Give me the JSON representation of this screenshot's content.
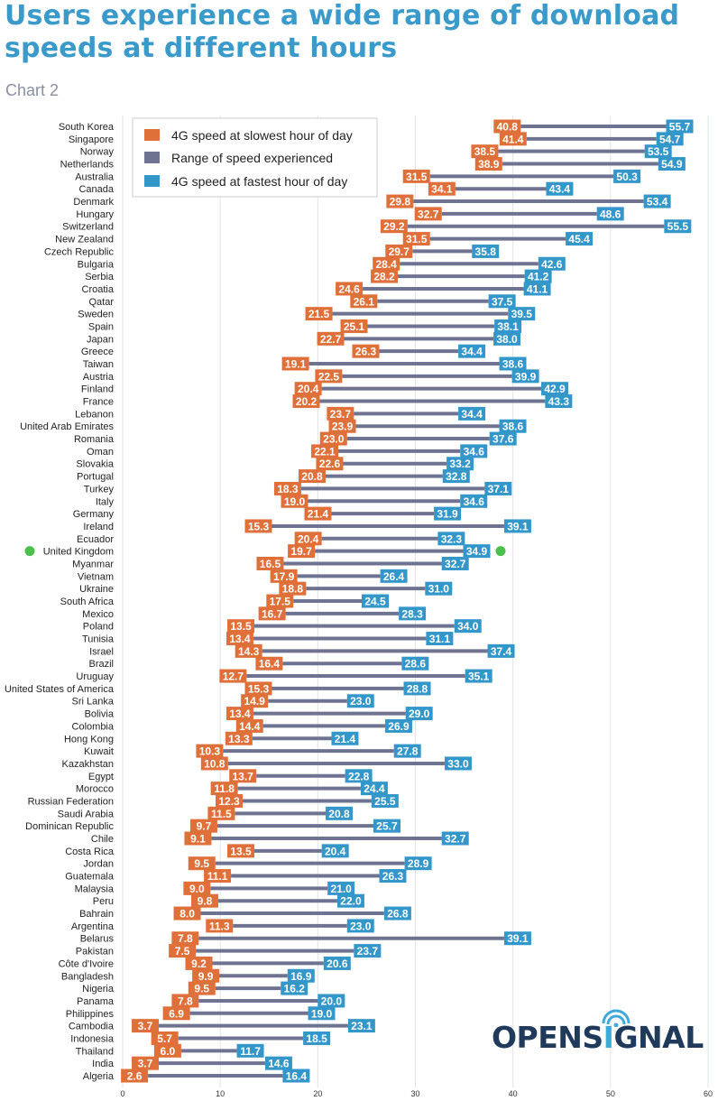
{
  "title": "Users experience a wide range of download speeds at different hours",
  "subtitle": "Chart 2",
  "logo": "OPENSIGNAL",
  "colors": {
    "slowest": "#e0703a",
    "range": "#6e7391",
    "fastest": "#3497c9",
    "highlight": "#4cc04c"
  },
  "chart_data": {
    "type": "dumbbell",
    "xlim": [
      0,
      60
    ],
    "xticks": [
      0,
      10,
      20,
      30,
      40,
      50,
      60
    ],
    "grid": true,
    "legend_placement": "top-left",
    "legend": [
      "4G speed at slowest hour of day",
      "Range of speed experienced",
      "4G speed at fastest hour of day"
    ],
    "highlighted": "United Kingdom",
    "rows": [
      {
        "country": "South Korea",
        "slow": 40.8,
        "fast": 55.7
      },
      {
        "country": "Singapore",
        "slow": 41.4,
        "fast": 54.7
      },
      {
        "country": "Norway",
        "slow": 38.5,
        "fast": 53.5
      },
      {
        "country": "Netherlands",
        "slow": 38.9,
        "fast": 54.9
      },
      {
        "country": "Australia",
        "slow": 31.5,
        "fast": 50.3
      },
      {
        "country": "Canada",
        "slow": 34.1,
        "fast": 43.4
      },
      {
        "country": "Denmark",
        "slow": 29.8,
        "fast": 53.4
      },
      {
        "country": "Hungary",
        "slow": 32.7,
        "fast": 48.6
      },
      {
        "country": "Switzerland",
        "slow": 29.2,
        "fast": 55.5
      },
      {
        "country": "New Zealand",
        "slow": 31.5,
        "fast": 45.4
      },
      {
        "country": "Czech Republic",
        "slow": 29.7,
        "fast": 35.8
      },
      {
        "country": "Bulgaria",
        "slow": 28.4,
        "fast": 42.6
      },
      {
        "country": "Serbia",
        "slow": 28.2,
        "fast": 41.2
      },
      {
        "country": "Croatia",
        "slow": 24.6,
        "fast": 41.1
      },
      {
        "country": "Qatar",
        "slow": 26.1,
        "fast": 37.5
      },
      {
        "country": "Sweden",
        "slow": 21.5,
        "fast": 39.5
      },
      {
        "country": "Spain",
        "slow": 25.1,
        "fast": 38.1
      },
      {
        "country": "Japan",
        "slow": 22.7,
        "fast": 38.0
      },
      {
        "country": "Greece",
        "slow": 26.3,
        "fast": 34.4
      },
      {
        "country": "Taiwan",
        "slow": 19.1,
        "fast": 38.6
      },
      {
        "country": "Austria",
        "slow": 22.5,
        "fast": 39.9
      },
      {
        "country": "Finland",
        "slow": 20.4,
        "fast": 42.9
      },
      {
        "country": "France",
        "slow": 20.2,
        "fast": 43.3
      },
      {
        "country": "Lebanon",
        "slow": 23.7,
        "fast": 34.4
      },
      {
        "country": "United Arab Emirates",
        "slow": 23.9,
        "fast": 38.6
      },
      {
        "country": "Romania",
        "slow": 23.0,
        "fast": 37.6
      },
      {
        "country": "Oman",
        "slow": 22.1,
        "fast": 34.6
      },
      {
        "country": "Slovakia",
        "slow": 22.6,
        "fast": 33.2
      },
      {
        "country": "Portugal",
        "slow": 20.8,
        "fast": 32.8
      },
      {
        "country": "Turkey",
        "slow": 18.3,
        "fast": 37.1
      },
      {
        "country": "Italy",
        "slow": 19.0,
        "fast": 34.6
      },
      {
        "country": "Germany",
        "slow": 21.4,
        "fast": 31.9
      },
      {
        "country": "Ireland",
        "slow": 15.3,
        "fast": 39.1
      },
      {
        "country": "Ecuador",
        "slow": 20.4,
        "fast": 32.3
      },
      {
        "country": "United Kingdom",
        "slow": 19.7,
        "fast": 34.9
      },
      {
        "country": "Myanmar",
        "slow": 16.5,
        "fast": 32.7
      },
      {
        "country": "Vietnam",
        "slow": 17.9,
        "fast": 26.4
      },
      {
        "country": "Ukraine",
        "slow": 18.8,
        "fast": 31.0
      },
      {
        "country": "South Africa",
        "slow": 17.5,
        "fast": 24.5
      },
      {
        "country": "Mexico",
        "slow": 16.7,
        "fast": 28.3
      },
      {
        "country": "Poland",
        "slow": 13.5,
        "fast": 34.0
      },
      {
        "country": "Tunisia",
        "slow": 13.4,
        "fast": 31.1
      },
      {
        "country": "Israel",
        "slow": 14.3,
        "fast": 37.4
      },
      {
        "country": "Brazil",
        "slow": 16.4,
        "fast": 28.6
      },
      {
        "country": "Uruguay",
        "slow": 12.7,
        "fast": 35.1
      },
      {
        "country": "United States of America",
        "slow": 15.3,
        "fast": 28.8
      },
      {
        "country": "Sri Lanka",
        "slow": 14.9,
        "fast": 23.0
      },
      {
        "country": "Bolivia",
        "slow": 13.4,
        "fast": 29.0
      },
      {
        "country": "Colombia",
        "slow": 14.4,
        "fast": 26.9
      },
      {
        "country": "Hong Kong",
        "slow": 13.3,
        "fast": 21.4
      },
      {
        "country": "Kuwait",
        "slow": 10.3,
        "fast": 27.8
      },
      {
        "country": "Kazakhstan",
        "slow": 10.8,
        "fast": 33.0
      },
      {
        "country": "Egypt",
        "slow": 13.7,
        "fast": 22.8
      },
      {
        "country": "Morocco",
        "slow": 11.8,
        "fast": 24.4
      },
      {
        "country": "Russian Federation",
        "slow": 12.3,
        "fast": 25.5
      },
      {
        "country": "Saudi Arabia",
        "slow": 11.5,
        "fast": 20.8
      },
      {
        "country": "Dominican Republic",
        "slow": 9.7,
        "fast": 25.7
      },
      {
        "country": "Chile",
        "slow": 9.1,
        "fast": 32.7
      },
      {
        "country": "Costa Rica",
        "slow": 13.5,
        "fast": 20.4
      },
      {
        "country": "Jordan",
        "slow": 9.5,
        "fast": 28.9
      },
      {
        "country": "Guatemala",
        "slow": 11.1,
        "fast": 26.3
      },
      {
        "country": "Malaysia",
        "slow": 9.0,
        "fast": 21.0
      },
      {
        "country": "Peru",
        "slow": 9.8,
        "fast": 22.0
      },
      {
        "country": "Bahrain",
        "slow": 8.0,
        "fast": 26.8
      },
      {
        "country": "Argentina",
        "slow": 11.3,
        "fast": 23.0
      },
      {
        "country": "Belarus",
        "slow": 7.8,
        "fast": 39.1
      },
      {
        "country": "Pakistan",
        "slow": 7.5,
        "fast": 23.7
      },
      {
        "country": "Côte d'Ivoire",
        "slow": 9.2,
        "fast": 20.6
      },
      {
        "country": "Bangladesh",
        "slow": 9.9,
        "fast": 16.9
      },
      {
        "country": "Nigeria",
        "slow": 9.5,
        "fast": 16.2
      },
      {
        "country": "Panama",
        "slow": 7.8,
        "fast": 20.0
      },
      {
        "country": "Philippines",
        "slow": 6.9,
        "fast": 19.0
      },
      {
        "country": "Cambodia",
        "slow": 3.7,
        "fast": 23.1
      },
      {
        "country": "Indonesia",
        "slow": 5.7,
        "fast": 18.5
      },
      {
        "country": "Thailand",
        "slow": 6.0,
        "fast": 11.7
      },
      {
        "country": "India",
        "slow": 3.7,
        "fast": 14.6
      },
      {
        "country": "Algeria",
        "slow": 2.6,
        "fast": 16.4
      }
    ]
  }
}
